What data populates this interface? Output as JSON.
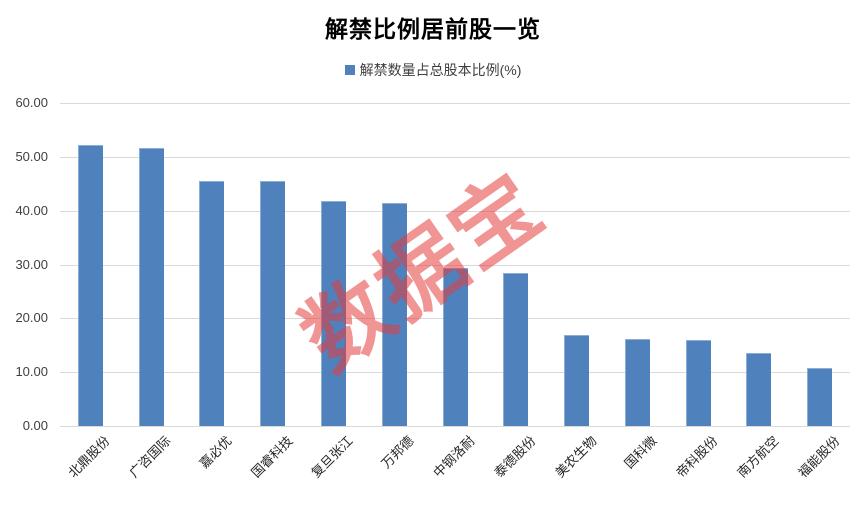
{
  "title": "解禁比例居前股一览",
  "legend": {
    "label": "解禁数量占总股本比例(%)",
    "marker_color": "#4f81bd"
  },
  "watermark": {
    "text": "数据宝",
    "color_rgba": "rgba(230,60,60,0.55)"
  },
  "colors": {
    "bar": "#4f81bd",
    "gridline": "#d9d9d9",
    "ytick_text": "#404040",
    "xlabel_text": "#262626",
    "background": "#ffffff"
  },
  "chart_data": {
    "type": "bar",
    "title": "解禁比例居前股一览",
    "legend_entries": [
      "解禁数量占总股本比例(%)"
    ],
    "legend_position": "top",
    "grid": true,
    "xlabel": "",
    "ylabel": "",
    "ylim": [
      0,
      60
    ],
    "ytick_step": 10,
    "ytick_labels": [
      "0.00",
      "10.00",
      "20.00",
      "30.00",
      "40.00",
      "50.00",
      "60.00"
    ],
    "categories": [
      "北鼎股份",
      "广咨国际",
      "嘉必优",
      "国睿科技",
      "复旦张江",
      "万邦德",
      "中钢洛耐",
      "泰德股份",
      "美农生物",
      "国科微",
      "帝科股份",
      "南方航空",
      "福能股份"
    ],
    "values": [
      52.2,
      51.7,
      45.5,
      45.5,
      41.8,
      41.5,
      29.3,
      28.5,
      16.9,
      16.1,
      15.9,
      13.5,
      10.7
    ]
  }
}
